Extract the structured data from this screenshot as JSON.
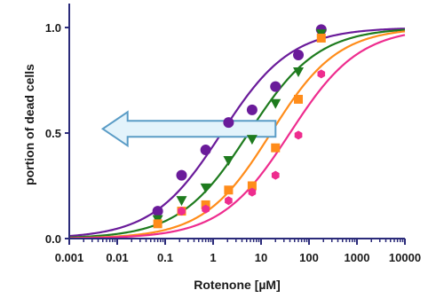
{
  "chart_data": {
    "type": "scatter",
    "xlabel": "Rotenone [µM]",
    "ylabel": "portion of dead cells",
    "xscale": "log",
    "xlim": [
      0.001,
      10000
    ],
    "ylim": [
      0,
      1.08
    ],
    "x_ticks": [
      0.001,
      0.01,
      0.1,
      1,
      10,
      100,
      1000,
      10000
    ],
    "x_tick_labels": [
      "0.001",
      "0.01",
      "0.1",
      "1",
      "10",
      "100",
      "1000",
      "10000"
    ],
    "y_ticks": [
      0,
      0.5,
      1
    ],
    "y_tick_labels": [
      "0.0",
      "0.5",
      "1.0"
    ],
    "grid": false,
    "annotation": {
      "shape": "left-arrow",
      "color": "#e3f3fb",
      "stroke": "#5a9cc6",
      "tail_x": 20,
      "head_x": 0.005,
      "y": 0.52
    },
    "series": [
      {
        "color": "#6a1b9a",
        "marker": "circle",
        "ec50": 1.5,
        "hill": 0.6,
        "points": [
          [
            0.07,
            0.13
          ],
          [
            0.22,
            0.3
          ],
          [
            0.7,
            0.42
          ],
          [
            2.1,
            0.55
          ],
          [
            6.5,
            0.61
          ],
          [
            20,
            0.72
          ],
          [
            60,
            0.87
          ],
          [
            180,
            0.99
          ]
        ]
      },
      {
        "color": "#1e7b1e",
        "marker": "triangle-down",
        "ec50": 5.5,
        "hill": 0.6,
        "points": [
          [
            0.07,
            0.09
          ],
          [
            0.22,
            0.18
          ],
          [
            0.7,
            0.24
          ],
          [
            2.1,
            0.37
          ],
          [
            6.5,
            0.47
          ],
          [
            20,
            0.64
          ],
          [
            60,
            0.79
          ],
          [
            180,
            0.97
          ]
        ]
      },
      {
        "color": "#ff8c1a",
        "marker": "square",
        "ec50": 16,
        "hill": 0.62,
        "points": [
          [
            0.07,
            0.07
          ],
          [
            0.22,
            0.13
          ],
          [
            0.7,
            0.16
          ],
          [
            2.1,
            0.23
          ],
          [
            6.5,
            0.25
          ],
          [
            20,
            0.43
          ],
          [
            60,
            0.66
          ],
          [
            180,
            0.95
          ]
        ]
      },
      {
        "color": "#ee2c8e",
        "marker": "hexagon",
        "ec50": 40,
        "hill": 0.6,
        "points": [
          [
            0.22,
            0.13
          ],
          [
            0.7,
            0.14
          ],
          [
            2.1,
            0.18
          ],
          [
            6.5,
            0.22
          ],
          [
            20,
            0.3
          ],
          [
            60,
            0.49
          ],
          [
            180,
            0.78
          ]
        ]
      }
    ]
  }
}
